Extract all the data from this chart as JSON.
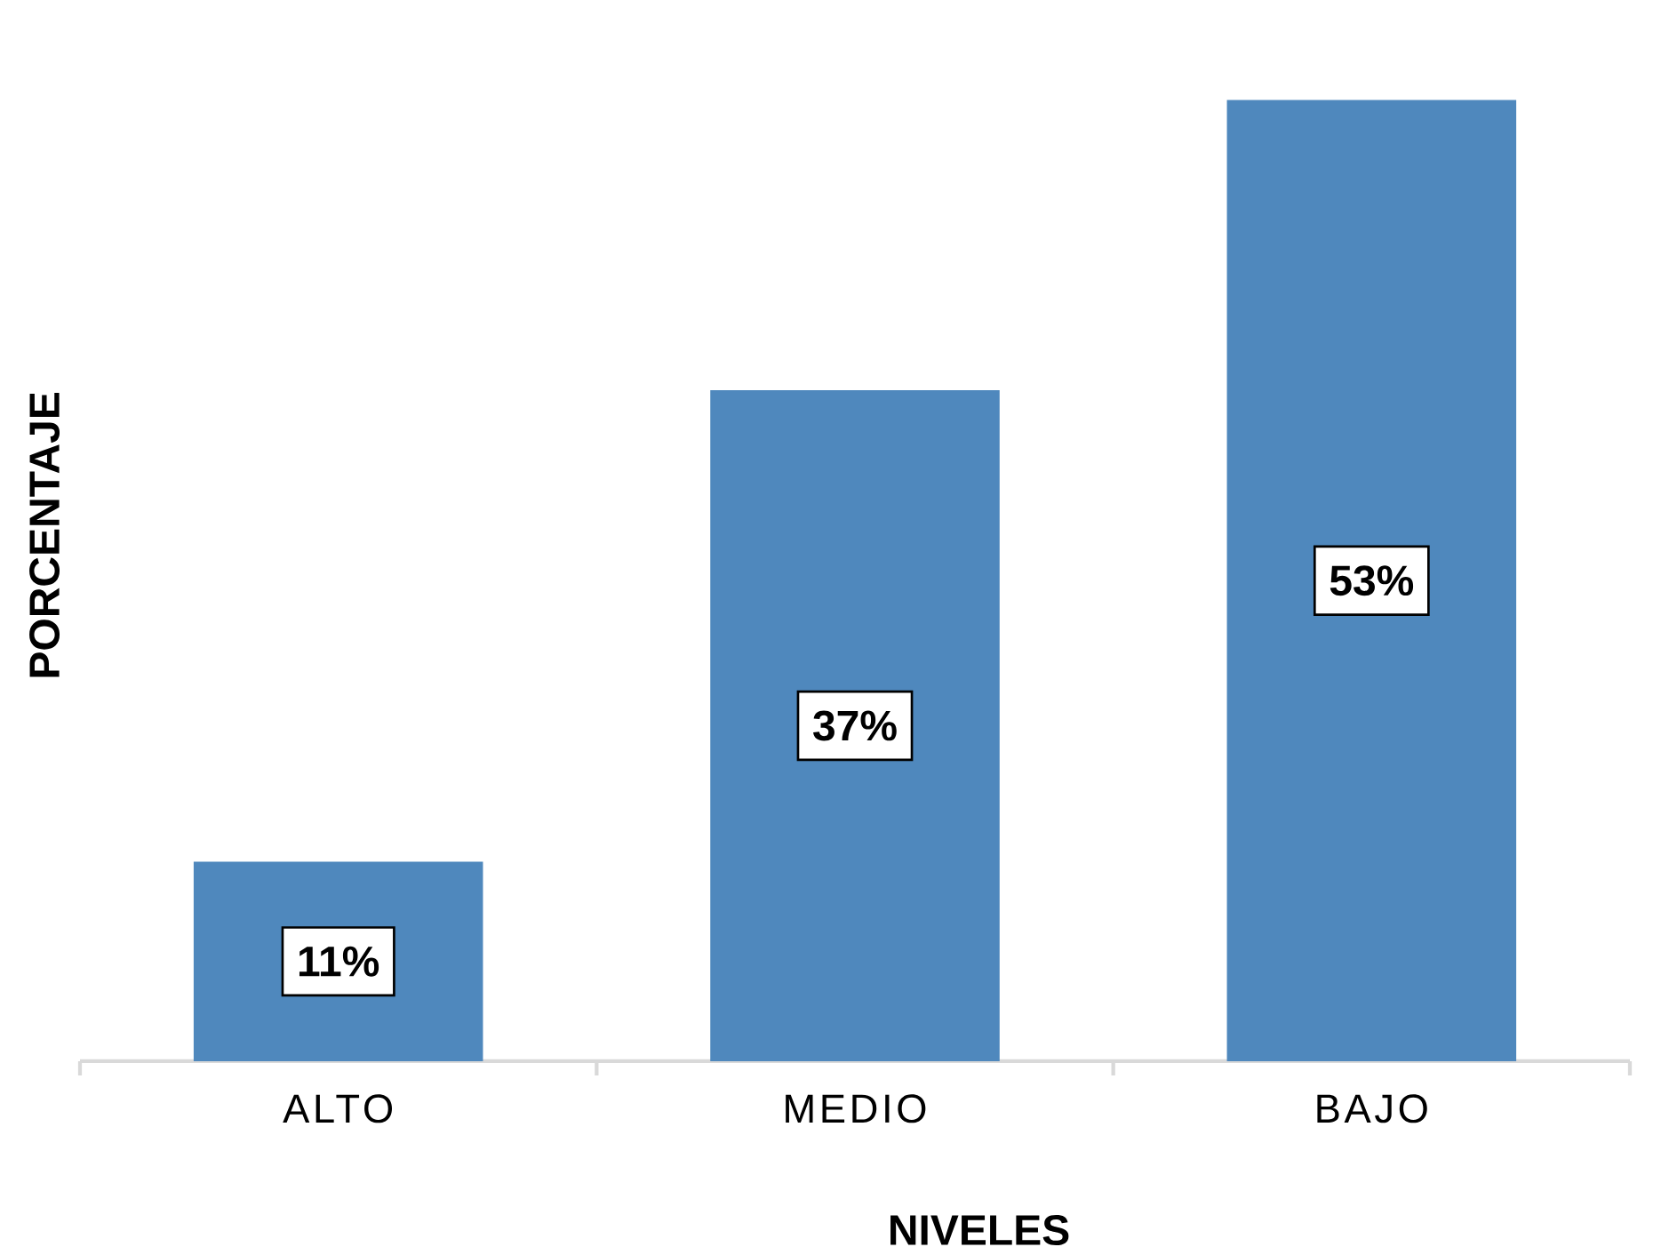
{
  "chart_data": {
    "type": "bar",
    "xlabel": "NIVELES",
    "ylabel": "PORCENTAJE",
    "categories": [
      "ALTO",
      "MEDIO",
      "BAJO"
    ],
    "values": [
      11,
      37,
      53
    ],
    "value_labels": [
      "11%",
      "37%",
      "53%"
    ],
    "color": "#4f88bd"
  }
}
